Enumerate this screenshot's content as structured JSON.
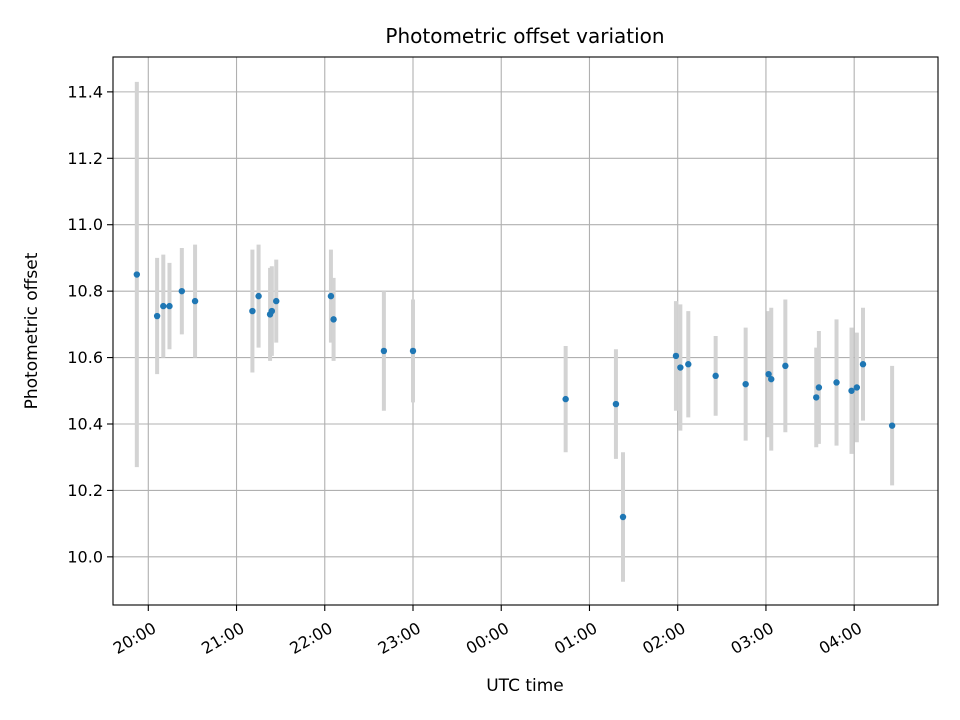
{
  "chart_data": {
    "type": "scatter",
    "title": "Photometric offset variation",
    "xlabel": "UTC time",
    "ylabel": "Photometric offset",
    "ylim": [
      9.855,
      11.505
    ],
    "xlim_hours": [
      19.6,
      28.95
    ],
    "grid": true,
    "x_ticks": [
      {
        "hour": 20,
        "label": "20:00"
      },
      {
        "hour": 21,
        "label": "21:00"
      },
      {
        "hour": 22,
        "label": "22:00"
      },
      {
        "hour": 23,
        "label": "23:00"
      },
      {
        "hour": 24,
        "label": "00:00"
      },
      {
        "hour": 25,
        "label": "01:00"
      },
      {
        "hour": 26,
        "label": "02:00"
      },
      {
        "hour": 27,
        "label": "03:00"
      },
      {
        "hour": 28,
        "label": "04:00"
      }
    ],
    "y_ticks": [
      {
        "value": 10.0,
        "label": "10.0"
      },
      {
        "value": 10.2,
        "label": "10.2"
      },
      {
        "value": 10.4,
        "label": "10.4"
      },
      {
        "value": 10.6,
        "label": "10.6"
      },
      {
        "value": 10.8,
        "label": "10.8"
      },
      {
        "value": 11.0,
        "label": "11.0"
      },
      {
        "value": 11.2,
        "label": "11.2"
      },
      {
        "value": 11.4,
        "label": "11.4"
      }
    ],
    "series": [
      {
        "name": "offset",
        "marker_color": "#1f77b4",
        "errorbar_color": "#d3d3d3",
        "points": [
          {
            "x": 19.87,
            "y": 10.85,
            "err": 0.58
          },
          {
            "x": 20.1,
            "y": 10.725,
            "err": 0.175
          },
          {
            "x": 20.17,
            "y": 10.755,
            "err": 0.155
          },
          {
            "x": 20.24,
            "y": 10.755,
            "err": 0.13
          },
          {
            "x": 20.38,
            "y": 10.8,
            "err": 0.13
          },
          {
            "x": 20.53,
            "y": 10.77,
            "err": 0.17
          },
          {
            "x": 21.18,
            "y": 10.74,
            "err": 0.185
          },
          {
            "x": 21.25,
            "y": 10.785,
            "err": 0.155
          },
          {
            "x": 21.38,
            "y": 10.73,
            "err": 0.14
          },
          {
            "x": 21.4,
            "y": 10.74,
            "err": 0.135
          },
          {
            "x": 21.45,
            "y": 10.77,
            "err": 0.125
          },
          {
            "x": 22.07,
            "y": 10.785,
            "err": 0.14
          },
          {
            "x": 22.1,
            "y": 10.715,
            "err": 0.125
          },
          {
            "x": 22.67,
            "y": 10.62,
            "err": 0.18
          },
          {
            "x": 23.0,
            "y": 10.62,
            "err": 0.155
          },
          {
            "x": 24.73,
            "y": 10.475,
            "err": 0.16
          },
          {
            "x": 25.3,
            "y": 10.46,
            "err": 0.165
          },
          {
            "x": 25.38,
            "y": 10.12,
            "err": 0.195
          },
          {
            "x": 25.98,
            "y": 10.605,
            "err": 0.165
          },
          {
            "x": 26.03,
            "y": 10.57,
            "err": 0.19
          },
          {
            "x": 26.12,
            "y": 10.58,
            "err": 0.16
          },
          {
            "x": 26.43,
            "y": 10.545,
            "err": 0.12
          },
          {
            "x": 26.77,
            "y": 10.52,
            "err": 0.17
          },
          {
            "x": 27.03,
            "y": 10.55,
            "err": 0.19
          },
          {
            "x": 27.06,
            "y": 10.535,
            "err": 0.215
          },
          {
            "x": 27.22,
            "y": 10.575,
            "err": 0.2
          },
          {
            "x": 27.57,
            "y": 10.48,
            "err": 0.15
          },
          {
            "x": 27.6,
            "y": 10.51,
            "err": 0.17
          },
          {
            "x": 27.8,
            "y": 10.525,
            "err": 0.19
          },
          {
            "x": 27.97,
            "y": 10.5,
            "err": 0.19
          },
          {
            "x": 28.03,
            "y": 10.51,
            "err": 0.165
          },
          {
            "x": 28.1,
            "y": 10.58,
            "err": 0.17
          },
          {
            "x": 28.43,
            "y": 10.395,
            "err": 0.18
          }
        ]
      }
    ]
  }
}
